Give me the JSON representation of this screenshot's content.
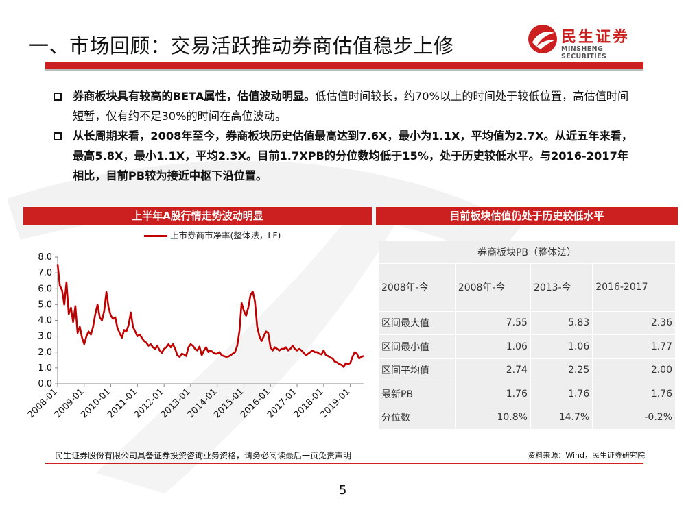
{
  "slide": {
    "title": "一、市场回顾：交易活跃推动券商估值稳步上修",
    "logo": {
      "cn": "民生证券",
      "en": "MINSHENG SECURITIES"
    },
    "page_number": "5"
  },
  "bullets": [
    {
      "bold": "券商板块具有较高的BETA属性，估值波动明显。",
      "normal": "低估值时间较长，约70%以上的时间处于较低位置，高估值时间短暂，仅有约不足30%的时间在高位波动。"
    },
    {
      "bold": "从长周期来看，2008年至今，券商板块历史估值最高达到7.6X，最小为1.1X，平均值为2.7X。从近五年来看，最高5.8X，最小1.1X，平均2.3X。目前1.7XPB的分位数均低于15%，处于历史较低水平。与2016-2017年相比，目前PB较为接近中枢下沿位置。",
      "normal": ""
    }
  ],
  "left_panel": {
    "header": "上半年A股行情走势波动明显"
  },
  "right_panel": {
    "header": "目前板块估值仍处于历史较低水平"
  },
  "chart_data": {
    "type": "line",
    "title": "",
    "xlabel": "",
    "ylabel": "",
    "ylim": [
      0,
      8
    ],
    "yticks": [
      "0.0",
      "1.0",
      "2.0",
      "3.0",
      "4.0",
      "5.0",
      "6.0",
      "7.0",
      "8.0"
    ],
    "xlim": [
      "2008-01",
      "2019-07"
    ],
    "xticks": [
      "2008-01",
      "2009-01",
      "2010-01",
      "2011-01",
      "2012-01",
      "2013-01",
      "2014-01",
      "2015-01",
      "2016-01",
      "2017-01",
      "2018-01",
      "2019-01"
    ],
    "legend_position": "top",
    "grid": false,
    "series": [
      {
        "name": "上市券商市净率(整体法，LF)",
        "color": "#c00000",
        "points": [
          [
            "2008-01",
            7.55
          ],
          [
            "2008-02",
            6.2
          ],
          [
            "2008-03",
            5.9
          ],
          [
            "2008-04",
            5.0
          ],
          [
            "2008-05",
            6.4
          ],
          [
            "2008-06",
            4.4
          ],
          [
            "2008-07",
            4.8
          ],
          [
            "2008-08",
            3.9
          ],
          [
            "2008-09",
            4.9
          ],
          [
            "2008-10",
            3.2
          ],
          [
            "2008-11",
            3.6
          ],
          [
            "2008-12",
            2.9
          ],
          [
            "2009-01",
            2.5
          ],
          [
            "2009-02",
            3.0
          ],
          [
            "2009-03",
            3.3
          ],
          [
            "2009-04",
            3.1
          ],
          [
            "2009-05",
            3.6
          ],
          [
            "2009-06",
            4.4
          ],
          [
            "2009-07",
            5.0
          ],
          [
            "2009-08",
            4.2
          ],
          [
            "2009-09",
            4.0
          ],
          [
            "2009-10",
            4.6
          ],
          [
            "2009-11",
            5.8
          ],
          [
            "2009-12",
            4.8
          ],
          [
            "2010-01",
            4.3
          ],
          [
            "2010-02",
            4.1
          ],
          [
            "2010-03",
            4.2
          ],
          [
            "2010-04",
            3.5
          ],
          [
            "2010-05",
            3.2
          ],
          [
            "2010-06",
            2.9
          ],
          [
            "2010-07",
            3.4
          ],
          [
            "2010-08",
            3.3
          ],
          [
            "2010-09",
            3.7
          ],
          [
            "2010-10",
            4.5
          ],
          [
            "2010-11",
            3.6
          ],
          [
            "2010-12",
            3.3
          ],
          [
            "2011-01",
            3.0
          ],
          [
            "2011-02",
            3.1
          ],
          [
            "2011-03",
            2.9
          ],
          [
            "2011-04",
            2.7
          ],
          [
            "2011-05",
            2.6
          ],
          [
            "2011-06",
            2.4
          ],
          [
            "2011-07",
            2.5
          ],
          [
            "2011-08",
            2.3
          ],
          [
            "2011-09",
            2.2
          ],
          [
            "2011-10",
            2.4
          ],
          [
            "2011-11",
            2.1
          ],
          [
            "2011-12",
            1.95
          ],
          [
            "2012-01",
            2.2
          ],
          [
            "2012-02",
            2.3
          ],
          [
            "2012-03",
            2.5
          ],
          [
            "2012-04",
            2.3
          ],
          [
            "2012-05",
            2.5
          ],
          [
            "2012-06",
            2.2
          ],
          [
            "2012-07",
            1.8
          ],
          [
            "2012-08",
            1.7
          ],
          [
            "2012-09",
            1.9
          ],
          [
            "2012-10",
            1.85
          ],
          [
            "2012-11",
            1.75
          ],
          [
            "2012-12",
            2.3
          ],
          [
            "2013-01",
            2.5
          ],
          [
            "2013-02",
            2.4
          ],
          [
            "2013-03",
            2.2
          ],
          [
            "2013-04",
            2.1
          ],
          [
            "2013-05",
            2.35
          ],
          [
            "2013-06",
            1.8
          ],
          [
            "2013-07",
            2.1
          ],
          [
            "2013-08",
            2.3
          ],
          [
            "2013-09",
            2.0
          ],
          [
            "2013-10",
            2.1
          ],
          [
            "2013-11",
            2.0
          ],
          [
            "2013-12",
            1.9
          ],
          [
            "2014-01",
            1.9
          ],
          [
            "2014-02",
            2.0
          ],
          [
            "2014-03",
            1.8
          ],
          [
            "2014-04",
            1.75
          ],
          [
            "2014-05",
            1.7
          ],
          [
            "2014-06",
            1.72
          ],
          [
            "2014-07",
            1.8
          ],
          [
            "2014-08",
            1.9
          ],
          [
            "2014-09",
            2.0
          ],
          [
            "2014-10",
            2.4
          ],
          [
            "2014-11",
            3.3
          ],
          [
            "2014-12",
            5.1
          ],
          [
            "2015-01",
            4.6
          ],
          [
            "2015-02",
            4.3
          ],
          [
            "2015-03",
            4.8
          ],
          [
            "2015-04",
            5.6
          ],
          [
            "2015-05",
            5.83
          ],
          [
            "2015-06",
            5.2
          ],
          [
            "2015-07",
            3.6
          ],
          [
            "2015-08",
            3.0
          ],
          [
            "2015-09",
            2.7
          ],
          [
            "2015-10",
            3.0
          ],
          [
            "2015-11",
            3.3
          ],
          [
            "2015-12",
            3.2
          ],
          [
            "2016-01",
            2.3
          ],
          [
            "2016-02",
            2.1
          ],
          [
            "2016-03",
            2.3
          ],
          [
            "2016-04",
            2.2
          ],
          [
            "2016-05",
            2.1
          ],
          [
            "2016-06",
            2.2
          ],
          [
            "2016-07",
            2.2
          ],
          [
            "2016-08",
            2.3
          ],
          [
            "2016-09",
            2.1
          ],
          [
            "2016-10",
            2.2
          ],
          [
            "2016-11",
            2.4
          ],
          [
            "2016-12",
            2.2
          ],
          [
            "2017-01",
            2.1
          ],
          [
            "2017-02",
            2.2
          ],
          [
            "2017-03",
            2.1
          ],
          [
            "2017-04",
            1.95
          ],
          [
            "2017-05",
            1.8
          ],
          [
            "2017-06",
            1.9
          ],
          [
            "2017-07",
            2.0
          ],
          [
            "2017-08",
            2.1
          ],
          [
            "2017-09",
            2.0
          ],
          [
            "2017-10",
            2.0
          ],
          [
            "2017-11",
            1.9
          ],
          [
            "2017-12",
            1.85
          ],
          [
            "2018-01",
            2.1
          ],
          [
            "2018-02",
            1.8
          ],
          [
            "2018-03",
            1.75
          ],
          [
            "2018-04",
            1.65
          ],
          [
            "2018-05",
            1.6
          ],
          [
            "2018-06",
            1.4
          ],
          [
            "2018-07",
            1.35
          ],
          [
            "2018-08",
            1.25
          ],
          [
            "2018-09",
            1.2
          ],
          [
            "2018-10",
            1.06
          ],
          [
            "2018-11",
            1.3
          ],
          [
            "2018-12",
            1.25
          ],
          [
            "2019-01",
            1.3
          ],
          [
            "2019-02",
            1.7
          ],
          [
            "2019-03",
            2.0
          ],
          [
            "2019-04",
            1.9
          ],
          [
            "2019-05",
            1.6
          ],
          [
            "2019-06",
            1.7
          ],
          [
            "2019-07",
            1.76
          ]
        ]
      }
    ]
  },
  "pb_table": {
    "header": "券商板块PB（整体法）",
    "columns": [
      "2008年-今",
      "2008年-今",
      "2013-今",
      "2016-2017"
    ],
    "rows": [
      {
        "label": "区间最大值",
        "values": [
          "7.55",
          "5.83",
          "2.36"
        ]
      },
      {
        "label": "区间最小值",
        "values": [
          "1.06",
          "1.06",
          "1.77"
        ]
      },
      {
        "label": "区间平均值",
        "values": [
          "2.74",
          "2.25",
          "2.00"
        ]
      },
      {
        "label": "最新PB",
        "values": [
          "1.76",
          "1.76",
          "1.76"
        ]
      },
      {
        "label": "分位数",
        "values": [
          "10.8%",
          "14.7%",
          "-0.2%"
        ]
      }
    ]
  },
  "footer": {
    "disclaimer": "民生证券股份有限公司具备证券投资咨询业务资格，请务必阅读最后一页免责声明",
    "source": "资料来源：Wind，民生证券研究院"
  }
}
